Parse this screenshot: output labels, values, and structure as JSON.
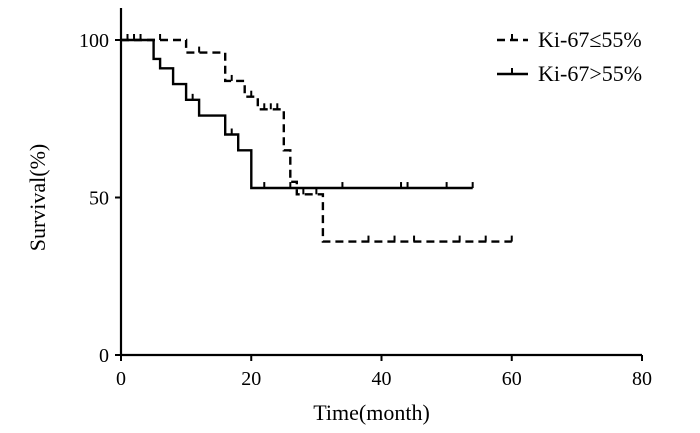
{
  "chart_data": {
    "type": "line",
    "title": "",
    "xlabel": "Time(month)",
    "ylabel": "Survival(%)",
    "xlim": [
      0,
      80
    ],
    "ylim": [
      0,
      100
    ],
    "xticks": [
      0,
      20,
      40,
      60,
      80
    ],
    "yticks": [
      0,
      50,
      100
    ],
    "grid": false,
    "legend_position": "top-right",
    "step": true,
    "series": [
      {
        "name": "Ki-67≤55%",
        "style": "dashed",
        "color": "#000000",
        "points": [
          [
            0,
            100
          ],
          [
            10,
            100
          ],
          [
            10,
            96
          ],
          [
            16,
            96
          ],
          [
            16,
            87
          ],
          [
            19,
            87
          ],
          [
            19,
            82
          ],
          [
            21,
            82
          ],
          [
            21,
            78
          ],
          [
            25,
            78
          ],
          [
            25,
            65
          ],
          [
            26,
            65
          ],
          [
            26,
            55
          ],
          [
            27,
            55
          ],
          [
            27,
            51
          ],
          [
            31,
            51
          ],
          [
            31,
            36
          ],
          [
            60,
            36
          ]
        ],
        "censored": [
          [
            1,
            100
          ],
          [
            2,
            100
          ],
          [
            6,
            100
          ],
          [
            12,
            96
          ],
          [
            17,
            87
          ],
          [
            20,
            82
          ],
          [
            22,
            78
          ],
          [
            23,
            78
          ],
          [
            24,
            78
          ],
          [
            28,
            51
          ],
          [
            30,
            51
          ],
          [
            38,
            36
          ],
          [
            42,
            36
          ],
          [
            45,
            36
          ],
          [
            52,
            36
          ],
          [
            56,
            36
          ],
          [
            60,
            36
          ]
        ]
      },
      {
        "name": "Ki-67>55%",
        "style": "solid",
        "color": "#000000",
        "points": [
          [
            0,
            100
          ],
          [
            5,
            100
          ],
          [
            5,
            94
          ],
          [
            6,
            94
          ],
          [
            6,
            91
          ],
          [
            8,
            91
          ],
          [
            8,
            86
          ],
          [
            10,
            86
          ],
          [
            10,
            81
          ],
          [
            12,
            81
          ],
          [
            12,
            76
          ],
          [
            16,
            76
          ],
          [
            16,
            70
          ],
          [
            18,
            70
          ],
          [
            18,
            65
          ],
          [
            20,
            65
          ],
          [
            20,
            53
          ],
          [
            54,
            53
          ]
        ],
        "censored": [
          [
            3,
            100
          ],
          [
            11,
            81
          ],
          [
            17,
            70
          ],
          [
            22,
            53
          ],
          [
            26,
            53
          ],
          [
            34,
            53
          ],
          [
            43,
            53
          ],
          [
            44,
            53
          ],
          [
            50,
            53
          ],
          [
            54,
            53
          ]
        ]
      }
    ]
  }
}
